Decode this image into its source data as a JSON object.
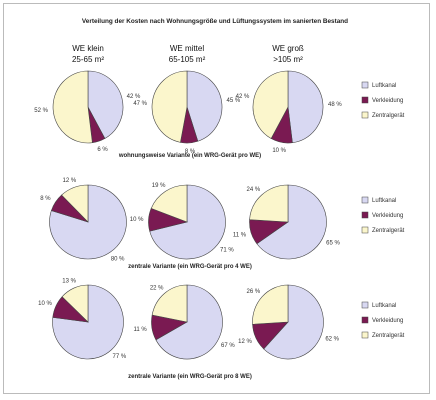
{
  "figure": {
    "title": "Verteilung der Kosten nach Wohnungsgröße und Lüftungssystem im sanierten Bestand",
    "columns": [
      {
        "line1": "WE klein",
        "line2": "25-65 m²"
      },
      {
        "line1": "WE mittel",
        "line2": "65-105 m²"
      },
      {
        "line1": "WE groß",
        "line2": ">105 m²"
      }
    ]
  },
  "colors": {
    "luftkanal": "#d8d8f2",
    "verkleidung": "#7a1a52",
    "zentralgeraet": "#fbf6cc",
    "outline": "#444444",
    "frame": "#bbbbbb"
  },
  "chart_data": [
    {
      "type": "pie",
      "title": "wohnungsweise Variante (ein WRG-Gerät pro WE)",
      "categories": [
        "WE klein 25-65 m²",
        "WE mittel 65-105 m²",
        "WE groß >105 m²"
      ],
      "legend": [
        "Luftkanal",
        "Verkleidung",
        "Zentralgerät"
      ],
      "legend_position": "right",
      "series": [
        {
          "name": "Luftkanal",
          "values": [
            42,
            45,
            48
          ]
        },
        {
          "name": "Verkleidung",
          "values": [
            6,
            8,
            10
          ]
        },
        {
          "name": "Zentralgerät",
          "values": [
            52,
            47,
            42
          ]
        }
      ]
    },
    {
      "type": "pie",
      "title": "zentrale Variante (ein WRG-Gerät pro 4 WE)",
      "categories": [
        "WE klein 25-65 m²",
        "WE mittel 65-105 m²",
        "WE groß >105 m²"
      ],
      "legend": [
        "Luftkanal",
        "Verkleidung",
        "Zentralgerät"
      ],
      "legend_position": "right",
      "series": [
        {
          "name": "Luftkanal",
          "values": [
            80,
            71,
            65
          ]
        },
        {
          "name": "Verkleidung",
          "values": [
            8,
            10,
            11
          ]
        },
        {
          "name": "Zentralgerät",
          "values": [
            12,
            19,
            24
          ]
        }
      ]
    },
    {
      "type": "pie",
      "title": "zentrale Variante (ein WRG-Gerät pro 8 WE)",
      "categories": [
        "WE klein 25-65 m²",
        "WE mittel 65-105 m²",
        "WE groß >105 m²"
      ],
      "legend": [
        "Luftkanal",
        "Verkleidung",
        "Zentralgerät"
      ],
      "legend_position": "right",
      "series": [
        {
          "name": "Luftkanal",
          "values": [
            77,
            67,
            62
          ]
        },
        {
          "name": "Verkleidung",
          "values": [
            10,
            11,
            12
          ]
        },
        {
          "name": "Zentralgerät",
          "values": [
            13,
            22,
            26
          ]
        }
      ]
    }
  ]
}
